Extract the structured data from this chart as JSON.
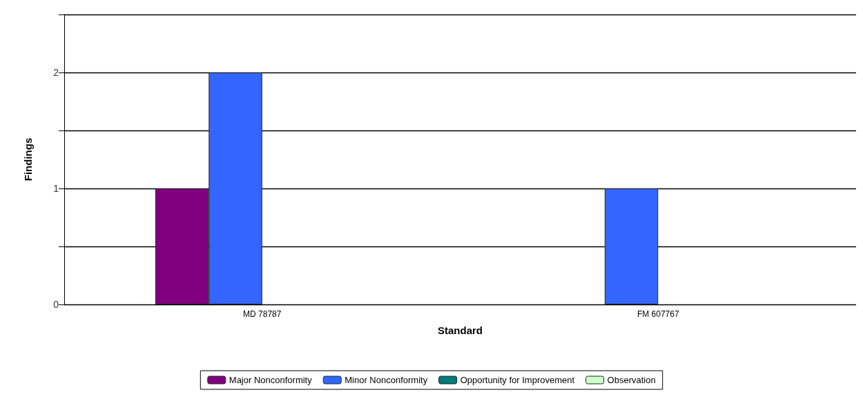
{
  "chart_data": {
    "type": "bar",
    "xlabel": "Standard",
    "ylabel": "Findings",
    "categories": [
      "MD 78787",
      "FM 607767"
    ],
    "series": [
      {
        "name": "Major Nonconformity",
        "color": "#800080",
        "values": [
          1,
          0
        ]
      },
      {
        "name": "Minor Nonconformity",
        "color": "#3366ff",
        "values": [
          2,
          1
        ]
      },
      {
        "name": "Opportunity for Improvement",
        "color": "#007b7b",
        "values": [
          0,
          0
        ]
      },
      {
        "name": "Observation",
        "color": "#ccffcc",
        "values": [
          0,
          0
        ]
      }
    ],
    "ylim": [
      0,
      2.5
    ],
    "yticks": [
      0,
      {
        "value": 0.5,
        "label": null
      },
      1,
      {
        "value": 1.5,
        "label": null
      },
      2,
      {
        "value": 2.5,
        "label": null
      }
    ],
    "grid": true,
    "legend": "bottom"
  }
}
